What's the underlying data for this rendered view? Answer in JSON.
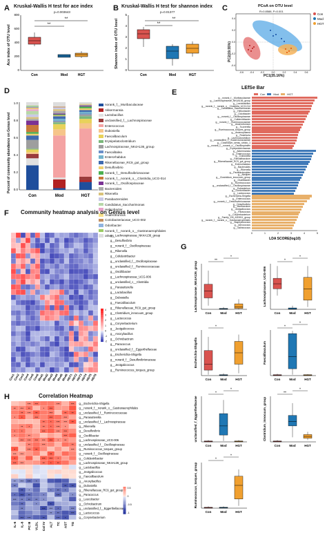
{
  "colors": {
    "con": "#d9534f",
    "mod": "#1f77b4",
    "hgt": "#f0a030",
    "pink_lefse": "#e06a5e",
    "blue_lefse": "#3f79b8",
    "orange_lefse": "#e8b06a"
  },
  "panelA": {
    "label": "A",
    "title": "Kruskal-Wallis H test for ace index",
    "pvalue": "p=0.003643",
    "ylabel": "Ace index of OTU level",
    "yticks": [
      "0",
      "200",
      "400",
      "600",
      "800"
    ],
    "groups": [
      "Con",
      "Mod",
      "HGT"
    ],
    "sig1": "**",
    "sig2": "**"
  },
  "panelB": {
    "label": "B",
    "title": "Kruskal-Wallis H test for shannon index",
    "pvalue": "p=0.01377",
    "ylabel": "Shannon index of OTU level",
    "yticks": [
      "0",
      "1",
      "2",
      "3",
      "4",
      "5"
    ],
    "groups": [
      "Con",
      "Mod",
      "HGT"
    ],
    "sig1": "**",
    "sig2": "**"
  },
  "panelC": {
    "label": "C",
    "title": "PCoA on OTU level",
    "subtitle": "R=0.8588, P=0.001",
    "xlabel": "PC1(35.16%)",
    "ylabel": "PC2(19.55%)",
    "legend": [
      "Con",
      "Mod",
      "HGT"
    ],
    "xticks": [
      "-0.6",
      "-0.4",
      "-0.2",
      "0.0",
      "0.2",
      "0.4",
      "0.6"
    ],
    "yticks": [
      "-0.4",
      "-0.2",
      "0.0",
      "0.2",
      "0.4"
    ]
  },
  "panelD": {
    "label": "D",
    "ylabel": "Percent of community abundance on Genus level",
    "yticks": [
      "0.0",
      "0.2",
      "0.4",
      "0.6",
      "0.8",
      "1.0"
    ],
    "groups": [
      "Con",
      "Mod",
      "HGT"
    ],
    "legend": [
      "norank_f__Muribaculaceae",
      "Akkermansia",
      "Lactobacillus",
      "unclassified_f__Lachnospiraceae",
      "Enterococcus",
      "Dubosiella",
      "Faecalibaculum",
      "Erysipelatoclostridium",
      "Lachnospiraceae_NK4A136_group",
      "Faecalitalea",
      "Enterorhabdus",
      "Rikenellaceae_RC9_gut_group",
      "Desulfovibrio",
      "norank_f__Desulfovibrionaceae",
      "norank_f__norank_o__Clostridia_UCG-014",
      "norank_f__Oscillospiraceae",
      "Bacteroides",
      "Rikenella",
      "Parabacteroides",
      "Candidatus_Saccharimonas",
      "Helicobacter",
      "Anaerotruncus",
      "Coriobacteriaceae_UCG-002",
      "Odoribacter",
      "norank_f__norank_o__Gastranaerophilales",
      "others"
    ]
  },
  "panelE": {
    "label": "E",
    "title": "LEfSe Bar",
    "legend": [
      "Con",
      "Mod",
      "HGT"
    ],
    "xlabel": "LDA SCORE(log10)",
    "xticks": [
      "0",
      "1",
      "2",
      "3",
      "4",
      "5"
    ],
    "features": [
      {
        "name": "g__norank_f__Muribaculaceae",
        "v": 5.0,
        "g": "con"
      },
      {
        "name": "g__Lachnospiraceae_NK4A136_group",
        "v": 4.8,
        "g": "con"
      },
      {
        "name": "g__Lactobacillus",
        "v": 4.7,
        "g": "con"
      },
      {
        "name": "g__norank_f__norank_o__Clostridia_UCG-014",
        "v": 4.6,
        "g": "con"
      },
      {
        "name": "g__Candidatus_Saccharimonas",
        "v": 4.5,
        "g": "con"
      },
      {
        "name": "g__Helicobacter",
        "v": 4.4,
        "g": "con"
      },
      {
        "name": "g__Odoribacter",
        "v": 4.3,
        "g": "con"
      },
      {
        "name": "g__norank_f__Oscillospiraceae",
        "v": 4.2,
        "g": "con"
      },
      {
        "name": "g__Colidextribacter",
        "v": 4.1,
        "g": "con"
      },
      {
        "name": "g__norank_f__Ruminococcaceae",
        "v": 4.0,
        "g": "con"
      },
      {
        "name": "g__Anaerotruncus",
        "v": 3.9,
        "g": "con"
      },
      {
        "name": "g__Tuzzerella",
        "v": 3.8,
        "g": "con"
      },
      {
        "name": "g__Ruminococcus_torques_group",
        "v": 3.7,
        "g": "con"
      },
      {
        "name": "g__Anaeroplasma",
        "v": 3.6,
        "g": "con"
      },
      {
        "name": "g__Roseburia",
        "v": 3.5,
        "g": "con"
      },
      {
        "name": "g__Lachnoclostridium",
        "v": 3.45,
        "g": "con"
      },
      {
        "name": "g__unclassified_f__Anaerovoracaceae",
        "v": 3.4,
        "g": "con"
      },
      {
        "name": "g__Clostridium_sensu_stricto_1",
        "v": 3.3,
        "g": "con"
      },
      {
        "name": "g__norank_f__norank_o__Oscillospirales",
        "v": 3.2,
        "g": "con"
      },
      {
        "name": "g__Erysipelotrichaceae",
        "v": 3.1,
        "g": "con"
      },
      {
        "name": "g__Akkermansia",
        "v": 4.9,
        "g": "mod"
      },
      {
        "name": "g__Enterococcus",
        "v": 4.7,
        "g": "mod"
      },
      {
        "name": "g__Dubosiella",
        "v": 4.6,
        "g": "mod"
      },
      {
        "name": "g__Faecalibaculum",
        "v": 4.5,
        "g": "mod"
      },
      {
        "name": "g__Rikenellaceae_RC9_gut_group",
        "v": 4.4,
        "g": "mod"
      },
      {
        "name": "g__Enterorhabdus",
        "v": 4.3,
        "g": "mod"
      },
      {
        "name": "g__Bacteroides",
        "v": 4.2,
        "g": "mod"
      },
      {
        "name": "g__Rikenella",
        "v": 4.1,
        "g": "mod"
      },
      {
        "name": "g__Parabacteroides",
        "v": 4.0,
        "g": "mod"
      },
      {
        "name": "g__Alistipes",
        "v": 3.9,
        "g": "mod"
      },
      {
        "name": "g__Clostridium_innocuum_group",
        "v": 3.8,
        "g": "mod"
      },
      {
        "name": "g__Oscillibacter",
        "v": 3.7,
        "g": "mod"
      },
      {
        "name": "g__Ruminococcus",
        "v": 3.6,
        "g": "mod"
      },
      {
        "name": "g__unclassified_f__Oscillospiraceae",
        "v": 3.5,
        "g": "mod"
      },
      {
        "name": "g__Eubacterium",
        "v": 3.4,
        "g": "mod"
      },
      {
        "name": "g__Gordonibacter",
        "v": 3.3,
        "g": "mod"
      },
      {
        "name": "g__Lactococcus",
        "v": 3.2,
        "g": "mod"
      },
      {
        "name": "g__Escherichia-Shigella",
        "v": 4.6,
        "g": "hgt"
      },
      {
        "name": "g__Enterococcus_HGT",
        "v": 4.4,
        "g": "hgt"
      },
      {
        "name": "g__norank_f__Desulfovibrionaceae",
        "v": 4.2,
        "g": "hgt"
      },
      {
        "name": "g__Desulfovibrio",
        "v": 4.0,
        "g": "hgt"
      },
      {
        "name": "g__Muribaculum",
        "v": 3.9,
        "g": "hgt"
      },
      {
        "name": "g__Jeotgalicoccus",
        "v": 3.8,
        "g": "hgt"
      },
      {
        "name": "g__Paracoccus",
        "v": 3.7,
        "g": "hgt"
      },
      {
        "name": "g__Corynebacterium",
        "v": 3.6,
        "g": "hgt"
      },
      {
        "name": "g__Family_XIII_AD3011_group",
        "v": 3.5,
        "g": "hgt"
      },
      {
        "name": "g__norank_f__norank_o__Gastranaerophilales",
        "v": 3.4,
        "g": "hgt"
      },
      {
        "name": "g__Staphylococcus",
        "v": 3.3,
        "g": "hgt"
      },
      {
        "name": "g__Aerococcus",
        "v": 3.2,
        "g": "hgt"
      },
      {
        "name": "g__Salinicoccus",
        "v": 3.1,
        "g": "hgt"
      }
    ]
  },
  "panelF": {
    "label": "F",
    "title": "Community heatmap analysis on Genus level",
    "samples": [
      "Con1",
      "Con2",
      "Con3",
      "Con4",
      "Con5",
      "Con6",
      "Mod1",
      "Mod2",
      "Mod3",
      "Mod4",
      "Mod5",
      "Mod6",
      "HGT1",
      "HGT2",
      "HGT3",
      "HGT4",
      "HGT5",
      "HGT6"
    ],
    "genera": [
      "g__Lachnospiraceae_NK4A136_group",
      "g__Desulfovibrio",
      "g__norank_f__Oscillospiraceae",
      "g__Rikenella",
      "g__Colidextribacter",
      "g__unclassified_f__Oscillospiraceae",
      "g__unclassified_f__Ruminococcaceae",
      "g__Oscillibacter",
      "g__Lachnospiraceae_UCG-006",
      "g__unclassified_c__Clostridia",
      "g__Parasutterella",
      "g__Lactobacillus",
      "g__Dubosiella",
      "g__Faecalibaculum",
      "g__Rikenellaceae_RC9_gut_group",
      "g__Clostridium_innocuum_group",
      "g__Lactococcus",
      "g__Corynebacterium",
      "g__Jeotgalicoccus",
      "g__Anocybacillus",
      "g__Ochrobactrum",
      "g__Paracoccus",
      "g__unclassified_f__Eggerthellaceae",
      "g__Escherichia-Shigella",
      "g__norank_f__Desulfovibrionaceae",
      "g__Jeotgalicoccus",
      "g__Ruminococcus_torques_group"
    ],
    "scale": [
      "4",
      "3",
      "2",
      "1",
      "0",
      "-1",
      "-2"
    ]
  },
  "panelG": {
    "label": "G",
    "plots": [
      {
        "ylabel": "Lachnospiraceae_NK4A136_group",
        "sig": [
          "**",
          "*"
        ]
      },
      {
        "ylabel": "Lachnospiraceae_UCG-006",
        "sig": [
          "*",
          "*"
        ]
      },
      {
        "ylabel": "Escherichia-Shigella",
        "sig": [
          "*"
        ]
      },
      {
        "ylabel": "Faecalibaculum",
        "sig": [
          "*",
          "*"
        ]
      },
      {
        "ylabel": "unclassified_f_Eggerthellaceae",
        "sig": [
          "*",
          "*"
        ]
      },
      {
        "ylabel": "Clostridium_innocuum_group",
        "sig": [
          "**",
          "*"
        ]
      },
      {
        "ylabel": "Ruminococcus_torques_group",
        "sig": [
          "*",
          "*"
        ]
      }
    ],
    "groups": [
      "Con",
      "Mod",
      "HGT"
    ]
  },
  "panelH": {
    "label": "H",
    "title": "Correlation Heatmap",
    "columns": [
      "IL-6",
      "IL-8",
      "PC III",
      "VLDL",
      "Col IV",
      "ALT",
      "TC",
      "AST",
      "TG"
    ],
    "rows": [
      "g__Escherichia-Shigella",
      "g__norank_f__norank_o__Gastranaerophilales",
      "g__unclassified_f__Ruminococcaceae",
      "g__Parasutterella",
      "g__unclassified_f__Lachnospiraceae",
      "g__Rikenella",
      "g__Desulfovibrio",
      "g__Oscillibacter",
      "g__Lachnospiraceae_UCG-006",
      "g__unclassified_f__Oscillospiraceae",
      "g__Ruminococcus_torques_group",
      "g__norank_f__Oscillospiraceae",
      "g__Colidextribacter",
      "g__Lachnospiraceae_NK4A136_group",
      "g__Lactobacillus",
      "g__Jeotgalicoccus",
      "g__Faecalibaculum",
      "g__Anoxybacillus",
      "g__Dubosiella",
      "g__Rikenellaceae_RC9_gut_group",
      "g__Paracoccus",
      "g__Leucobacter",
      "g__Ochrobactrum",
      "g__unclassified_f__Eggerthellaceae",
      "g__Lactococcus",
      "g__Corynebacterium"
    ],
    "scale": [
      "0.5",
      "0",
      "-0.5",
      "-1"
    ]
  }
}
